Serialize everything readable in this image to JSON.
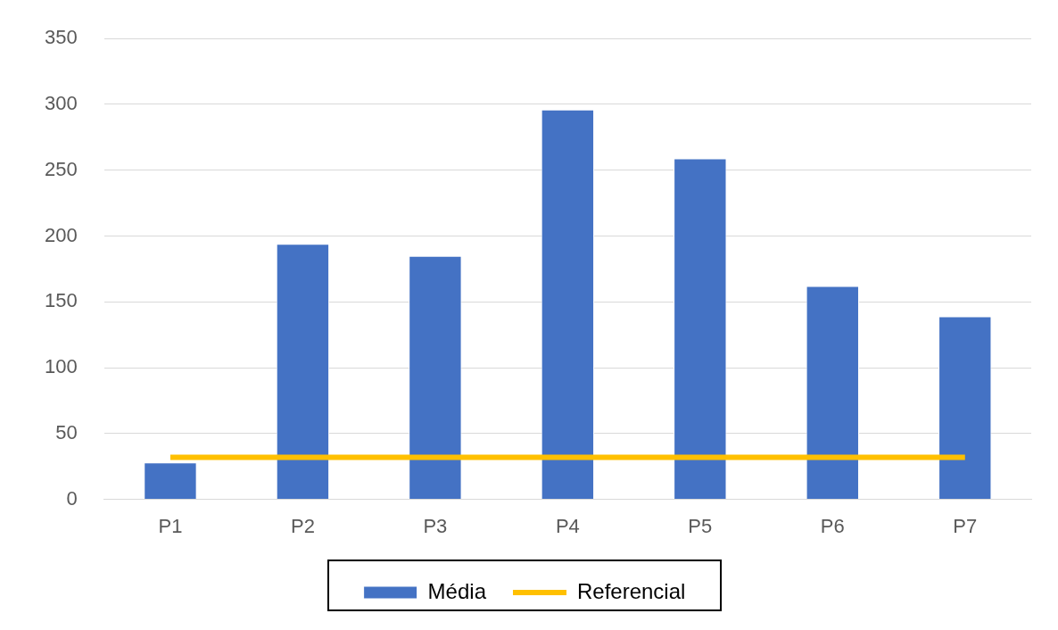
{
  "chart_data": {
    "type": "bar",
    "categories": [
      "P1",
      "P2",
      "P3",
      "P4",
      "P5",
      "P6",
      "P7"
    ],
    "series": [
      {
        "name": "Média",
        "color": "#4472c4",
        "values": [
          28,
          194,
          185,
          296,
          259,
          162,
          139
        ]
      },
      {
        "name": "Referencial",
        "type": "line",
        "color": "#ffc000",
        "values": [
          32,
          32,
          32,
          32,
          32,
          32,
          32
        ]
      }
    ],
    "ylim": [
      0,
      350
    ],
    "yticks": [
      0,
      50,
      100,
      150,
      200,
      250,
      300,
      350
    ],
    "grid": "y",
    "legend": "bottom",
    "marker": "none",
    "line_style": "solid"
  }
}
